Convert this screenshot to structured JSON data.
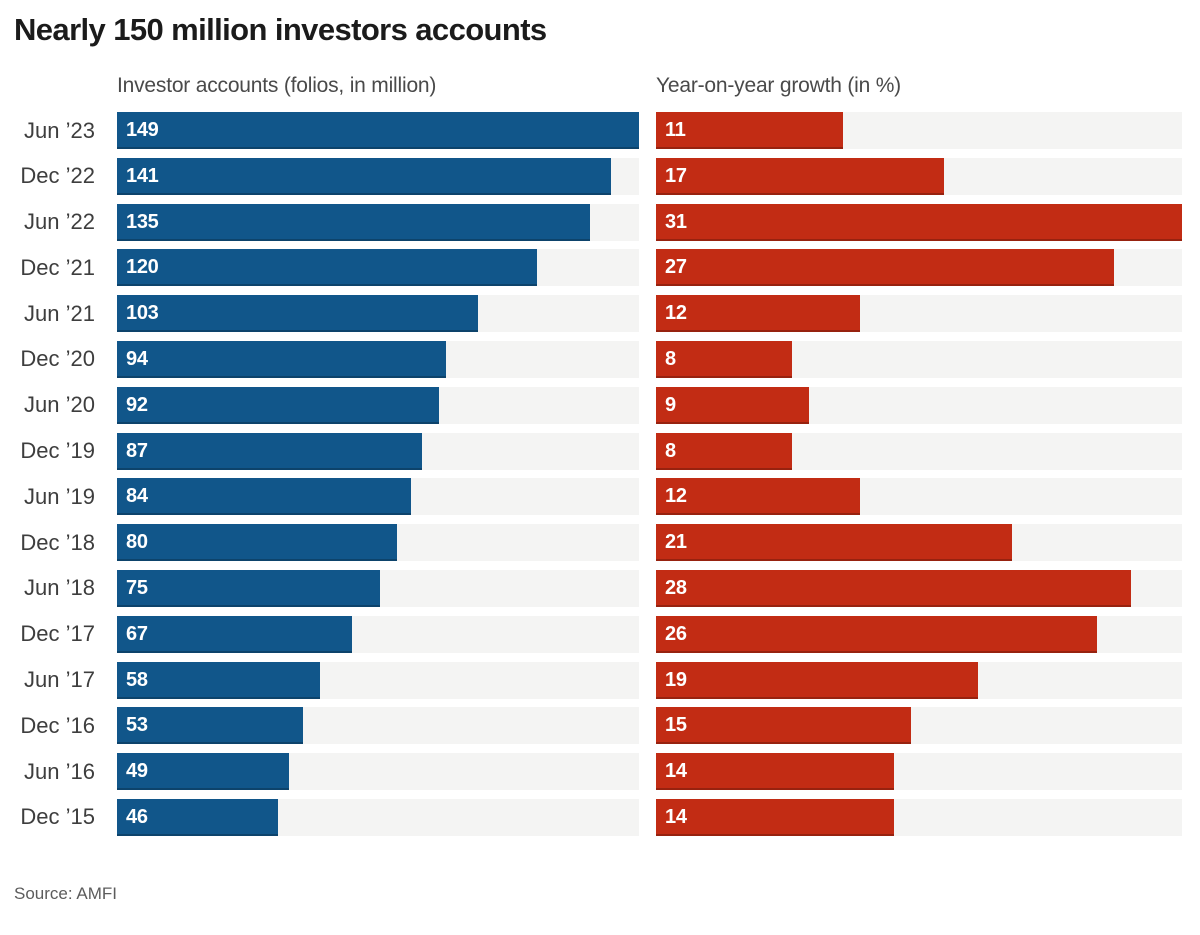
{
  "page": {
    "title": "Nearly 150 million investors accounts",
    "source": "Source: AMFI"
  },
  "chart_data": {
    "type": "bar",
    "orientation": "horizontal",
    "grid": false,
    "legend_position": "column-headers-top",
    "value_labels": "inside-start",
    "track_color": "#f4f4f3",
    "categories": [
      "Jun ’23",
      "Dec ’22",
      "Jun ’22",
      "Dec ’21",
      "Jun ’21",
      "Dec ’20",
      "Jun ’20",
      "Dec ’19",
      "Jun ’19",
      "Dec ’18",
      "Jun ’18",
      "Dec ’17",
      "Jun ’17",
      "Dec ’16",
      "Jun ’16",
      "Dec ’15"
    ],
    "series": [
      {
        "name": "Investor accounts (folios, in million)",
        "values": [
          149,
          141,
          135,
          120,
          103,
          94,
          92,
          87,
          84,
          80,
          75,
          67,
          58,
          53,
          49,
          46
        ],
        "color": "#11568a",
        "axis_max": 149
      },
      {
        "name": "Year-on-year growth (in %)",
        "values": [
          11,
          17,
          31,
          27,
          12,
          8,
          9,
          8,
          12,
          21,
          28,
          26,
          19,
          15,
          14,
          14
        ],
        "color": "#c22c14",
        "axis_max": 31
      }
    ]
  }
}
